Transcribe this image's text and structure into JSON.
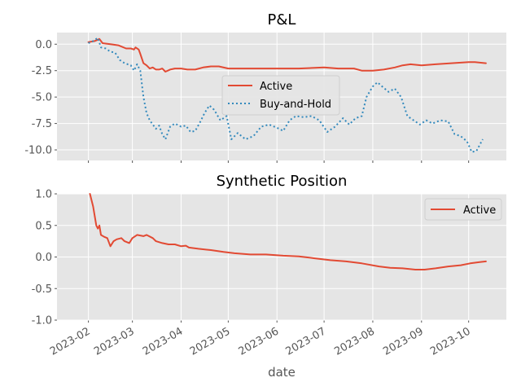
{
  "chart_data": [
    {
      "type": "line",
      "title": "P&L",
      "ylim": [
        -11.0,
        1.1
      ],
      "yticks": [
        "0.0",
        "-2.5",
        "-5.0",
        "-7.5",
        "-10.0"
      ],
      "ytick_values": [
        0.0,
        -2.5,
        -5.0,
        -7.5,
        -10.0
      ],
      "grid": true,
      "legend": "center-right",
      "series": [
        {
          "name": "Active",
          "color": "#E24A33",
          "style": "solid",
          "points": [
            [
              "2023-02-01",
              0.2
            ],
            [
              "2023-02-05",
              0.3
            ],
            [
              "2023-02-08",
              0.5
            ],
            [
              "2023-02-10",
              0.1
            ],
            [
              "2023-02-15",
              0.0
            ],
            [
              "2023-02-20",
              -0.1
            ],
            [
              "2023-02-25",
              -0.4
            ],
            [
              "2023-02-28",
              -0.4
            ],
            [
              "2023-03-02",
              -0.5
            ],
            [
              "2023-03-03",
              -0.3
            ],
            [
              "2023-03-05",
              -0.5
            ],
            [
              "2023-03-06",
              -0.9
            ],
            [
              "2023-03-08",
              -1.8
            ],
            [
              "2023-03-10",
              -2.0
            ],
            [
              "2023-03-12",
              -2.3
            ],
            [
              "2023-03-14",
              -2.2
            ],
            [
              "2023-03-16",
              -2.4
            ],
            [
              "2023-03-18",
              -2.4
            ],
            [
              "2023-03-20",
              -2.3
            ],
            [
              "2023-03-22",
              -2.6
            ],
            [
              "2023-03-25",
              -2.4
            ],
            [
              "2023-03-28",
              -2.3
            ],
            [
              "2023-04-01",
              -2.3
            ],
            [
              "2023-04-05",
              -2.4
            ],
            [
              "2023-04-10",
              -2.4
            ],
            [
              "2023-04-15",
              -2.2
            ],
            [
              "2023-04-20",
              -2.1
            ],
            [
              "2023-04-25",
              -2.1
            ],
            [
              "2023-05-01",
              -2.3
            ],
            [
              "2023-05-15",
              -2.3
            ],
            [
              "2023-06-01",
              -2.3
            ],
            [
              "2023-06-15",
              -2.3
            ],
            [
              "2023-07-01",
              -2.2
            ],
            [
              "2023-07-10",
              -2.3
            ],
            [
              "2023-07-20",
              -2.3
            ],
            [
              "2023-07-25",
              -2.5
            ],
            [
              "2023-08-01",
              -2.5
            ],
            [
              "2023-08-08",
              -2.4
            ],
            [
              "2023-08-15",
              -2.2
            ],
            [
              "2023-08-20",
              -2.0
            ],
            [
              "2023-08-25",
              -1.9
            ],
            [
              "2023-09-01",
              -2.0
            ],
            [
              "2023-09-10",
              -1.9
            ],
            [
              "2023-09-20",
              -1.8
            ],
            [
              "2023-10-01",
              -1.7
            ],
            [
              "2023-10-05",
              -1.7
            ],
            [
              "2023-10-12",
              -1.8
            ]
          ]
        },
        {
          "name": "Buy-and-Hold",
          "color": "#348ABD",
          "style": "dotted",
          "points": [
            [
              "2023-02-01",
              0.1
            ],
            [
              "2023-02-04",
              0.3
            ],
            [
              "2023-02-07",
              0.6
            ],
            [
              "2023-02-09",
              -0.3
            ],
            [
              "2023-02-12",
              -0.4
            ],
            [
              "2023-02-15",
              -0.7
            ],
            [
              "2023-02-18",
              -0.8
            ],
            [
              "2023-02-21",
              -1.5
            ],
            [
              "2023-02-24",
              -1.8
            ],
            [
              "2023-02-28",
              -2.0
            ],
            [
              "2023-03-02",
              -2.5
            ],
            [
              "2023-03-04",
              -1.9
            ],
            [
              "2023-03-06",
              -2.5
            ],
            [
              "2023-03-08",
              -5.0
            ],
            [
              "2023-03-10",
              -6.5
            ],
            [
              "2023-03-12",
              -7.2
            ],
            [
              "2023-03-14",
              -7.6
            ],
            [
              "2023-03-16",
              -8.0
            ],
            [
              "2023-03-18",
              -7.7
            ],
            [
              "2023-03-20",
              -8.5
            ],
            [
              "2023-03-22",
              -9.0
            ],
            [
              "2023-03-25",
              -7.8
            ],
            [
              "2023-03-28",
              -7.5
            ],
            [
              "2023-04-01",
              -7.8
            ],
            [
              "2023-04-04",
              -7.7
            ],
            [
              "2023-04-07",
              -8.3
            ],
            [
              "2023-04-10",
              -8.2
            ],
            [
              "2023-04-13",
              -7.4
            ],
            [
              "2023-04-16",
              -6.5
            ],
            [
              "2023-04-19",
              -5.8
            ],
            [
              "2023-04-22",
              -6.2
            ],
            [
              "2023-04-26",
              -7.2
            ],
            [
              "2023-04-30",
              -6.8
            ],
            [
              "2023-05-03",
              -9.0
            ],
            [
              "2023-05-07",
              -8.4
            ],
            [
              "2023-05-12",
              -9.0
            ],
            [
              "2023-05-17",
              -8.7
            ],
            [
              "2023-05-22",
              -7.8
            ],
            [
              "2023-05-27",
              -7.6
            ],
            [
              "2023-06-01",
              -7.9
            ],
            [
              "2023-06-05",
              -8.2
            ],
            [
              "2023-06-09",
              -7.2
            ],
            [
              "2023-06-13",
              -6.8
            ],
            [
              "2023-06-18",
              -6.9
            ],
            [
              "2023-06-23",
              -6.8
            ],
            [
              "2023-06-28",
              -7.2
            ],
            [
              "2023-07-03",
              -8.3
            ],
            [
              "2023-07-08",
              -7.8
            ],
            [
              "2023-07-13",
              -7.0
            ],
            [
              "2023-07-17",
              -7.6
            ],
            [
              "2023-07-21",
              -7.0
            ],
            [
              "2023-07-25",
              -6.8
            ],
            [
              "2023-07-28",
              -5.0
            ],
            [
              "2023-08-01",
              -4.0
            ],
            [
              "2023-08-04",
              -3.6
            ],
            [
              "2023-08-07",
              -4.0
            ],
            [
              "2023-08-11",
              -4.5
            ],
            [
              "2023-08-15",
              -4.2
            ],
            [
              "2023-08-19",
              -5.0
            ],
            [
              "2023-08-23",
              -6.8
            ],
            [
              "2023-08-27",
              -7.2
            ],
            [
              "2023-08-31",
              -7.6
            ],
            [
              "2023-09-04",
              -7.2
            ],
            [
              "2023-09-08",
              -7.5
            ],
            [
              "2023-09-13",
              -7.2
            ],
            [
              "2023-09-18",
              -7.3
            ],
            [
              "2023-09-22",
              -8.5
            ],
            [
              "2023-09-26",
              -8.7
            ],
            [
              "2023-09-30",
              -9.2
            ],
            [
              "2023-10-03",
              -10.2
            ],
            [
              "2023-10-06",
              -10.1
            ],
            [
              "2023-10-10",
              -9.0
            ]
          ]
        }
      ]
    },
    {
      "type": "line",
      "title": "Synthetic Position",
      "xlabel": "date",
      "ylim": [
        -1.0,
        1.0
      ],
      "yticks": [
        "1.0",
        "0.5",
        "0.0",
        "-0.5",
        "-1.0"
      ],
      "ytick_values": [
        1.0,
        0.5,
        0.0,
        -0.5,
        -1.0
      ],
      "grid": true,
      "legend": "top-right",
      "xticks": [
        "2023-02",
        "2023-03",
        "2023-04",
        "2023-05",
        "2023-06",
        "2023-07",
        "2023-08",
        "2023-09",
        "2023-10"
      ],
      "xtick_dates": [
        "2023-02-01",
        "2023-03-01",
        "2023-04-01",
        "2023-05-01",
        "2023-06-01",
        "2023-07-01",
        "2023-08-01",
        "2023-09-01",
        "2023-10-01"
      ],
      "series": [
        {
          "name": "Active",
          "color": "#E24A33",
          "style": "solid",
          "points": [
            [
              "2023-02-02",
              1.0
            ],
            [
              "2023-02-04",
              0.8
            ],
            [
              "2023-02-06",
              0.5
            ],
            [
              "2023-02-07",
              0.45
            ],
            [
              "2023-02-08",
              0.5
            ],
            [
              "2023-02-09",
              0.35
            ],
            [
              "2023-02-11",
              0.32
            ],
            [
              "2023-02-13",
              0.3
            ],
            [
              "2023-02-15",
              0.17
            ],
            [
              "2023-02-17",
              0.25
            ],
            [
              "2023-02-19",
              0.28
            ],
            [
              "2023-02-22",
              0.3
            ],
            [
              "2023-02-24",
              0.25
            ],
            [
              "2023-02-27",
              0.22
            ],
            [
              "2023-03-01",
              0.3
            ],
            [
              "2023-03-04",
              0.35
            ],
            [
              "2023-03-08",
              0.33
            ],
            [
              "2023-03-10",
              0.35
            ],
            [
              "2023-03-14",
              0.3
            ],
            [
              "2023-03-16",
              0.25
            ],
            [
              "2023-03-20",
              0.22
            ],
            [
              "2023-03-24",
              0.2
            ],
            [
              "2023-03-28",
              0.2
            ],
            [
              "2023-04-01",
              0.17
            ],
            [
              "2023-04-04",
              0.18
            ],
            [
              "2023-04-06",
              0.15
            ],
            [
              "2023-04-12",
              0.13
            ],
            [
              "2023-04-20",
              0.11
            ],
            [
              "2023-04-28",
              0.08
            ],
            [
              "2023-05-05",
              0.06
            ],
            [
              "2023-05-15",
              0.04
            ],
            [
              "2023-05-25",
              0.04
            ],
            [
              "2023-06-05",
              0.02
            ],
            [
              "2023-06-15",
              0.01
            ],
            [
              "2023-06-25",
              -0.02
            ],
            [
              "2023-07-05",
              -0.05
            ],
            [
              "2023-07-15",
              -0.07
            ],
            [
              "2023-07-25",
              -0.1
            ],
            [
              "2023-08-05",
              -0.15
            ],
            [
              "2023-08-12",
              -0.17
            ],
            [
              "2023-08-20",
              -0.18
            ],
            [
              "2023-08-28",
              -0.2
            ],
            [
              "2023-09-03",
              -0.2
            ],
            [
              "2023-09-10",
              -0.18
            ],
            [
              "2023-09-18",
              -0.15
            ],
            [
              "2023-09-26",
              -0.13
            ],
            [
              "2023-10-02",
              -0.1
            ],
            [
              "2023-10-08",
              -0.08
            ],
            [
              "2023-10-12",
              -0.07
            ]
          ]
        }
      ]
    }
  ]
}
